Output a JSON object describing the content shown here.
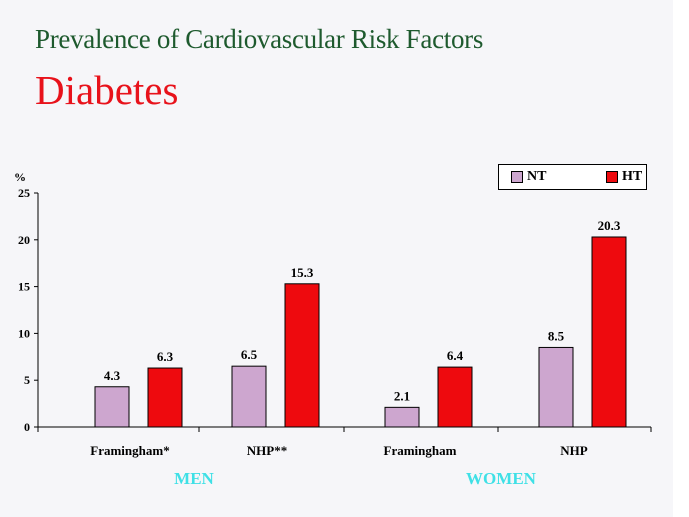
{
  "title": "Prevalence of Cardiovascular Risk Factors",
  "subtitle": "Diabetes",
  "chart_data": {
    "type": "bar",
    "ylabel": "%",
    "ylim": [
      0,
      25
    ],
    "yticks": [
      0,
      5,
      10,
      15,
      20,
      25
    ],
    "categories": [
      "Framingham*",
      "NHP**",
      "Framingham",
      "NHP"
    ],
    "groups": [
      "MEN",
      "WOMEN"
    ],
    "series": [
      {
        "name": "NT",
        "color": "#cda6cf",
        "values": [
          4.3,
          6.5,
          2.1,
          8.5
        ],
        "labels": [
          "4.3",
          "6.5",
          "2.1",
          "8.5"
        ]
      },
      {
        "name": "HT",
        "color": "#ee0a0e",
        "values": [
          6.3,
          15.3,
          6.4,
          20.3
        ],
        "labels": [
          "6.3",
          "15.3",
          "6.4",
          "20.3"
        ]
      }
    ],
    "legend_position": "top-right",
    "grid": false
  }
}
